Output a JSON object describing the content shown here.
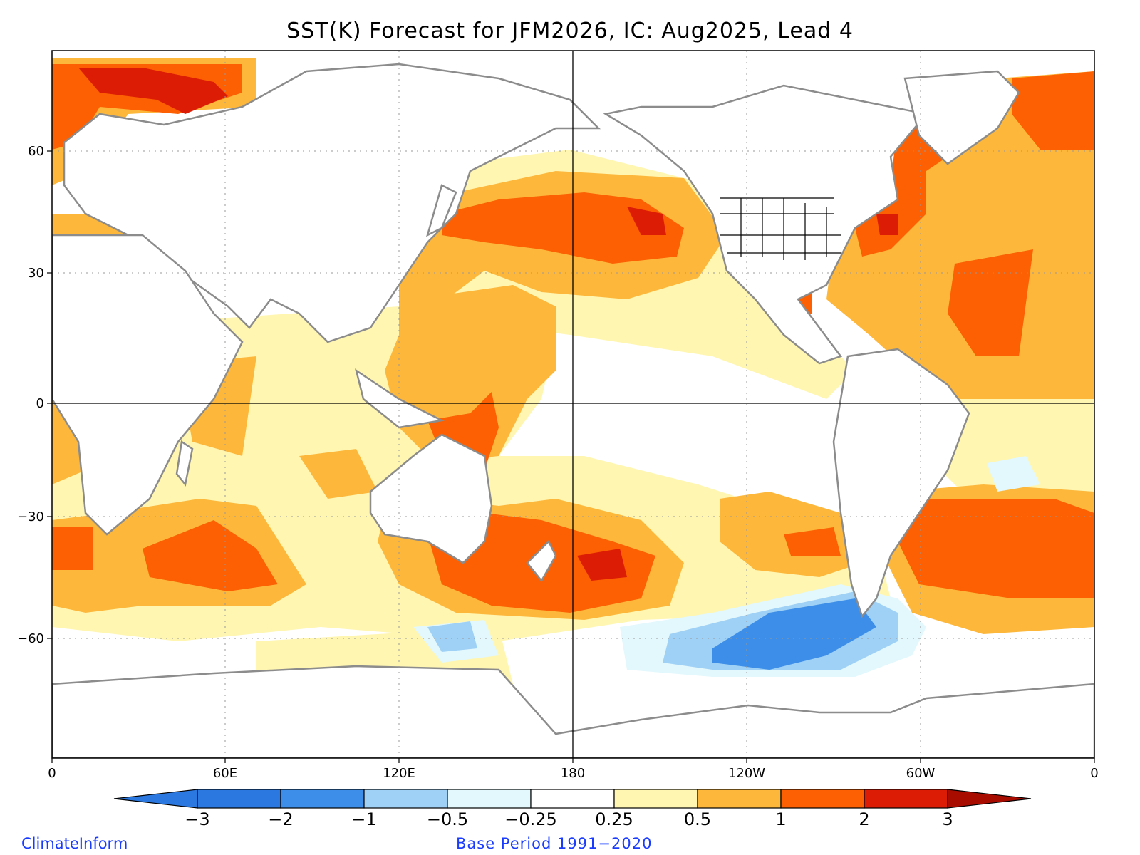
{
  "title": "SST(K) Forecast for JFM2026, IC: Aug2025, Lead 4",
  "y_axis": {
    "labels": [
      "60",
      "30",
      "0",
      "−30",
      "−60"
    ]
  },
  "x_axis": {
    "labels": [
      "0",
      "60E",
      "120E",
      "180",
      "120W",
      "60W",
      "0"
    ]
  },
  "colorbar": {
    "ticks": [
      "−3",
      "−2",
      "−1",
      "−0.5",
      "−0.25",
      "0.25",
      "0.5",
      "1",
      "2",
      "3"
    ],
    "colors": [
      "#2a78e0",
      "#3c8ee8",
      "#9fd0f5",
      "#e2f8fc",
      "#ffffff",
      "#fff6b2",
      "#fdb83c",
      "#fc6003",
      "#dd1c05",
      "#a80c00"
    ]
  },
  "footer": {
    "left": "ClimateInform",
    "right": "Base Period 1991−2020"
  }
}
